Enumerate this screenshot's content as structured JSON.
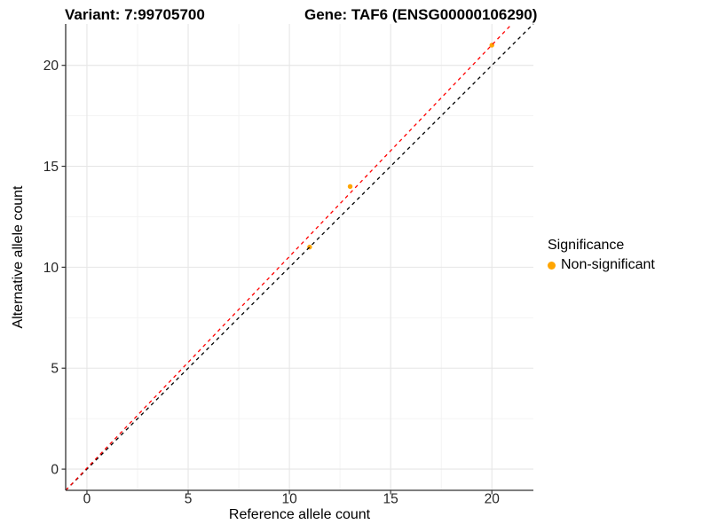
{
  "chart_data": {
    "type": "scatter",
    "titles": {
      "left": "Variant: 7:99705700",
      "right": "Gene: TAF6 (ENSG00000106290)"
    },
    "xlabel": "Reference allele count",
    "ylabel": "Alternative allele count",
    "xlim": [
      -1.05,
      22.05
    ],
    "ylim": [
      -1.05,
      22.05
    ],
    "x_ticks": [
      0,
      5,
      10,
      15,
      20
    ],
    "y_ticks": [
      0,
      5,
      10,
      15,
      20
    ],
    "x_minor_ticks": [
      2.5,
      7.5,
      12.5,
      17.5
    ],
    "y_minor_ticks": [
      2.5,
      7.5,
      12.5,
      17.5
    ],
    "grid": "major-and-minor",
    "colors": {
      "point": "#FFA500",
      "identity_line": "#000000",
      "fit_line": "#FF0000",
      "grid_major": "#E6E6E6",
      "grid_minor": "#F2F2F2",
      "axis": "#333333",
      "tick_text": "#262626"
    },
    "series": [
      {
        "name": "Non-significant",
        "color": "#FFA500",
        "points": [
          [
            11,
            11
          ],
          [
            13,
            14
          ],
          [
            20,
            21
          ]
        ]
      }
    ],
    "lines": [
      {
        "name": "identity-line",
        "style": "dashed",
        "color": "#000000",
        "slope": 1.0,
        "intercept": 0.0
      },
      {
        "name": "fit-line",
        "style": "dashed",
        "color": "#FF0000",
        "slope": 1.048,
        "intercept": 0.05
      }
    ],
    "legend": {
      "title": "Significance",
      "position": "right",
      "items": [
        {
          "label": "Non-significant",
          "color": "#FFA500",
          "marker": "circle"
        }
      ]
    }
  }
}
